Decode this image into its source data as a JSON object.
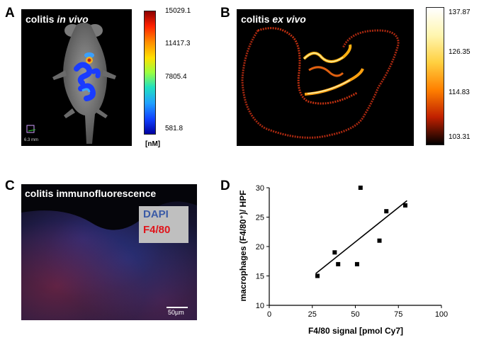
{
  "panels": {
    "a": {
      "letter": "A",
      "title_prefix": "colitis ",
      "title_italic": "in vivo",
      "colorbar_ticks": [
        "15029.1",
        "11417.3",
        "7805.4",
        "581.8"
      ],
      "colorbar_unit": "[nM]",
      "scale_text": "6.3 mm"
    },
    "b": {
      "letter": "B",
      "title_prefix": "colitis ",
      "title_italic": "ex vivo",
      "colorbar_ticks": [
        "137.87",
        "126.35",
        "114.83",
        "103.31"
      ]
    },
    "c": {
      "letter": "C",
      "title": "colitis immunofluorescence",
      "legend_dapi": "DAPI",
      "legend_f480": "F4/80",
      "scalebar": "50µm",
      "dapi_color": "#3a5aa6",
      "f480_color": "#e0141b"
    },
    "d": {
      "letter": "D"
    }
  },
  "chart_data": {
    "type": "scatter",
    "xlabel": "F4/80 signal [pmol Cy7]",
    "ylabel": "macrophages (F4/80⁺)/ HPF",
    "xlim": [
      0,
      100
    ],
    "ylim": [
      10,
      30
    ],
    "xticks": [
      "0",
      "25",
      "50",
      "75",
      "100"
    ],
    "yticks": [
      "10",
      "15",
      "20",
      "25",
      "30"
    ],
    "points": [
      {
        "x": 28,
        "y": 15
      },
      {
        "x": 38,
        "y": 19
      },
      {
        "x": 40,
        "y": 17
      },
      {
        "x": 51,
        "y": 17
      },
      {
        "x": 53,
        "y": 30
      },
      {
        "x": 64,
        "y": 21
      },
      {
        "x": 68,
        "y": 26
      },
      {
        "x": 79,
        "y": 27
      }
    ],
    "fit_line": {
      "x": [
        27,
        80
      ],
      "y": [
        15.4,
        27.8
      ]
    }
  }
}
